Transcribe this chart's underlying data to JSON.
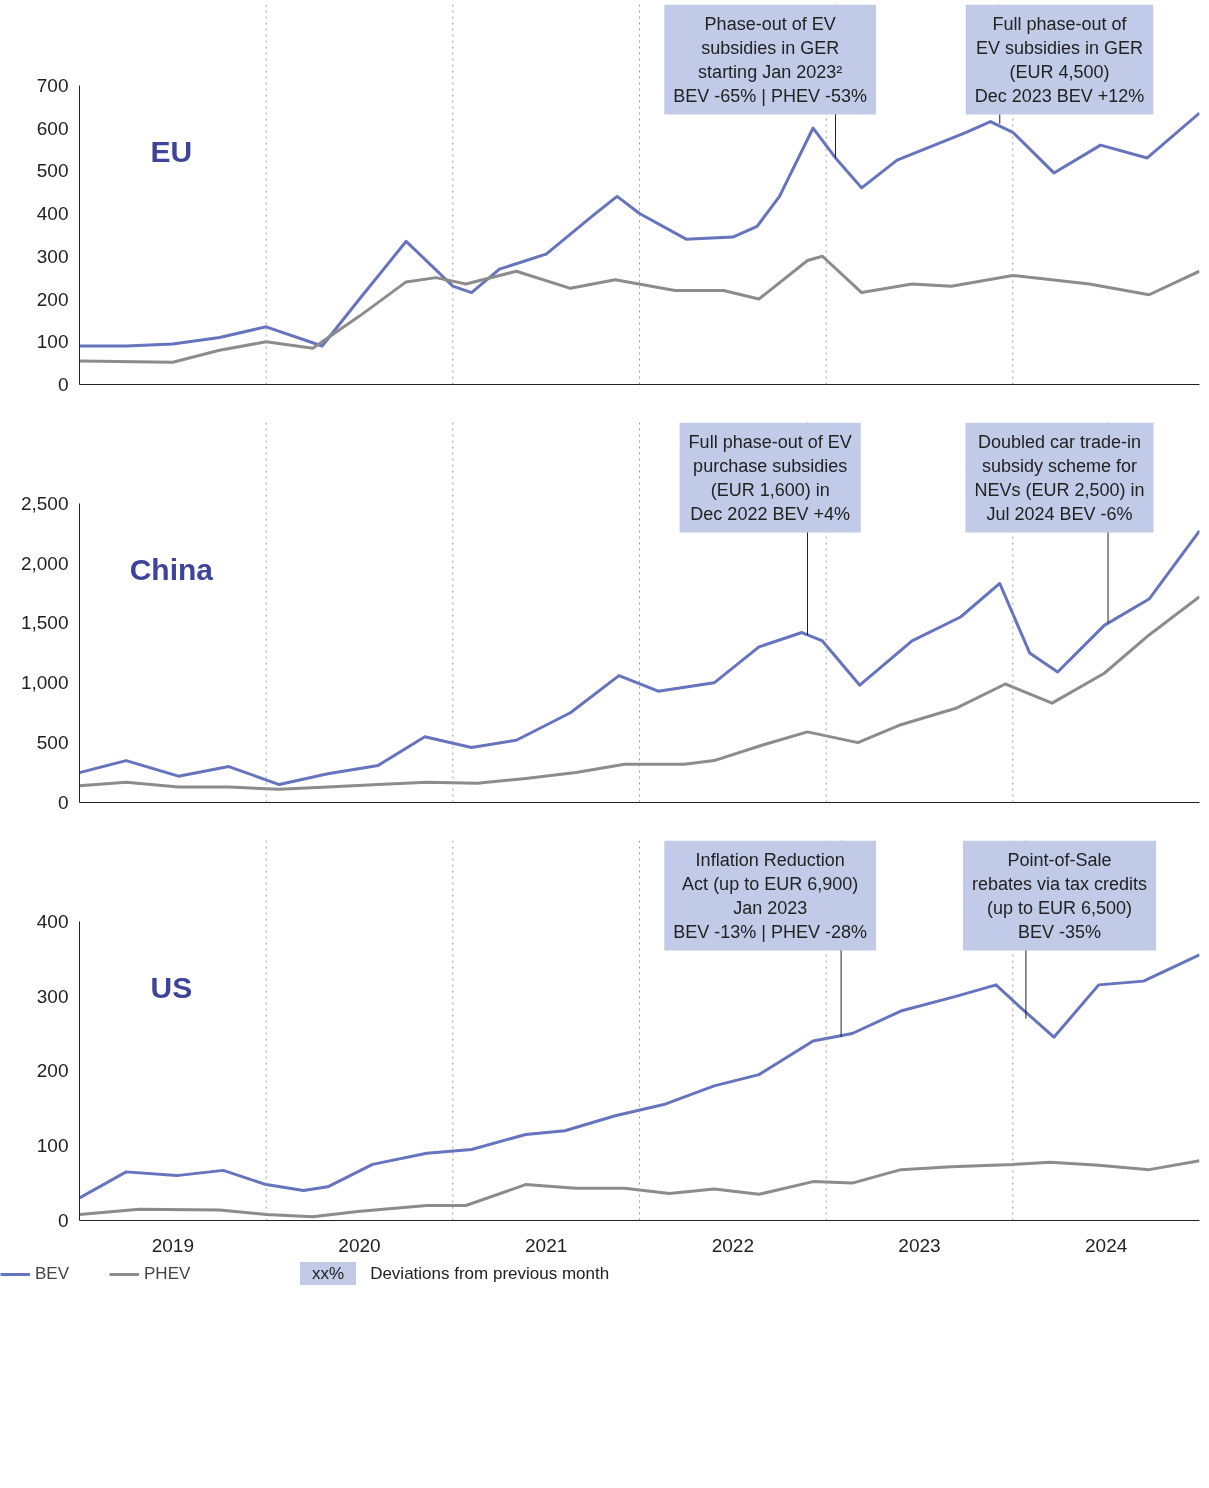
{
  "chart_data": [
    {
      "type": "line",
      "title": "EU",
      "xlim": [
        2019,
        2025
      ],
      "ylim": [
        0,
        700
      ],
      "yticks": [
        0,
        100,
        200,
        300,
        400,
        500,
        600,
        700
      ],
      "tick_labels": "y",
      "grid": false,
      "marker": "none",
      "line_style": "solid",
      "series": [
        {
          "color": "#6673bd",
          "x": [
            2019.0,
            2019.25,
            2019.5,
            2019.75,
            2020.0,
            2020.3,
            2020.5,
            2020.75,
            2021.0,
            2021.1,
            2021.25,
            2021.5,
            2021.75,
            2021.88,
            2022.0,
            2022.25,
            2022.5,
            2022.63,
            2022.75,
            2022.93,
            2023.05,
            2023.19,
            2023.38,
            2023.75,
            2023.88,
            2024.0,
            2024.22,
            2024.47,
            2024.72,
            2025.0
          ],
          "values": [
            90,
            90,
            95,
            110,
            135,
            90,
            200,
            335,
            230,
            215,
            270,
            305,
            395,
            440,
            400,
            340,
            345,
            370,
            440,
            600,
            530,
            460,
            525,
            590,
            615,
            590,
            495,
            560,
            530,
            635
          ]
        },
        {
          "color": "#8c8c8c",
          "x": [
            2019.0,
            2019.5,
            2019.75,
            2020.0,
            2020.25,
            2020.5,
            2020.75,
            2020.91,
            2021.07,
            2021.34,
            2021.63,
            2021.87,
            2022.19,
            2022.45,
            2022.64,
            2022.9,
            2022.98,
            2023.19,
            2023.46,
            2023.67,
            2024.0,
            2024.41,
            2024.73,
            2025.0
          ],
          "values": [
            55,
            52,
            80,
            100,
            85,
            160,
            240,
            250,
            235,
            265,
            225,
            245,
            220,
            220,
            200,
            290,
            300,
            215,
            235,
            230,
            255,
            235,
            210,
            265
          ]
        }
      ],
      "ref_lines": [
        {
          "axis": "x",
          "value": 2020,
          "line_style": "dotted",
          "color": "#999999"
        },
        {
          "axis": "x",
          "value": 2021,
          "line_style": "dotted",
          "color": "#999999"
        },
        {
          "axis": "x",
          "value": 2022,
          "line_style": "dotted",
          "color": "#999999"
        },
        {
          "axis": "x",
          "value": 2023,
          "line_style": "dotted",
          "color": "#999999"
        },
        {
          "axis": "x",
          "value": 2024,
          "line_style": "dotted",
          "color": "#999999"
        }
      ],
      "annotations": [
        {
          "text": "Phase-out of EV\nsubsidies in GER\nstarting Jan 2023²\nBEV -65% | PHEV -53%",
          "x": 2023.05,
          "y": 530
        },
        {
          "text": "Full phase-out of\nEV subsidies in GER\n(EUR 4,500)\nDec 2023 BEV +12%",
          "x": 2023.93,
          "y": 610
        }
      ]
    },
    {
      "type": "line",
      "title": "China",
      "xlim": [
        2019,
        2025
      ],
      "ylim": [
        0,
        2500
      ],
      "yticks": [
        0,
        500,
        {
          "value": 1000,
          "label": "1,000"
        },
        {
          "value": 1500,
          "label": "1,500"
        },
        {
          "value": 2000,
          "label": "2,000"
        },
        {
          "value": 2500,
          "label": "2,500"
        }
      ],
      "tick_labels": "y",
      "grid": false,
      "marker": "none",
      "line_style": "solid",
      "series": [
        {
          "color": "#6673bd",
          "x": [
            2019.0,
            2019.25,
            2019.53,
            2019.8,
            2020.07,
            2020.33,
            2020.6,
            2020.85,
            2021.1,
            2021.34,
            2021.63,
            2021.89,
            2022.1,
            2022.4,
            2022.64,
            2022.87,
            2022.98,
            2023.18,
            2023.46,
            2023.72,
            2023.93,
            2024.09,
            2024.24,
            2024.49,
            2024.73,
            2025.0
          ],
          "values": [
            250,
            350,
            220,
            300,
            150,
            240,
            310,
            550,
            460,
            520,
            750,
            1060,
            930,
            1000,
            1300,
            1420,
            1350,
            980,
            1350,
            1550,
            1830,
            1250,
            1090,
            1480,
            1700,
            2270
          ]
        },
        {
          "color": "#8c8c8c",
          "x": [
            2019.0,
            2019.25,
            2019.53,
            2019.8,
            2020.07,
            2020.33,
            2020.6,
            2020.86,
            2021.13,
            2021.39,
            2021.66,
            2021.92,
            2022.24,
            2022.4,
            2022.66,
            2022.9,
            2023.17,
            2023.4,
            2023.7,
            2023.96,
            2024.21,
            2024.49,
            2024.73,
            2025.0
          ],
          "values": [
            140,
            170,
            130,
            130,
            110,
            130,
            150,
            170,
            160,
            200,
            250,
            320,
            320,
            350,
            480,
            590,
            500,
            650,
            790,
            990,
            830,
            1080,
            1400,
            1720
          ]
        }
      ],
      "ref_lines": [
        {
          "axis": "x",
          "value": 2020,
          "line_style": "dotted",
          "color": "#999999"
        },
        {
          "axis": "x",
          "value": 2021,
          "line_style": "dotted",
          "color": "#999999"
        },
        {
          "axis": "x",
          "value": 2022,
          "line_style": "dotted",
          "color": "#999999"
        },
        {
          "axis": "x",
          "value": 2023,
          "line_style": "dotted",
          "color": "#999999"
        },
        {
          "axis": "x",
          "value": 2024,
          "line_style": "dotted",
          "color": "#999999"
        }
      ],
      "annotations": [
        {
          "text": "Full phase-out of EV\npurchase subsidies\n(EUR 1,600) in\nDec 2022 BEV +4%",
          "x": 2022.9,
          "y": 1400
        },
        {
          "text": "Doubled car trade-in\nsubsidy scheme for\nNEVs (EUR 2,500) in\nJul 2024 BEV -6%",
          "x": 2024.51,
          "y": 1500
        }
      ]
    },
    {
      "type": "line",
      "title": "US",
      "xlim": [
        2019,
        2025
      ],
      "ylim": [
        0,
        400
      ],
      "yticks": [
        0,
        100,
        200,
        300,
        400
      ],
      "xticks": [
        {
          "value": 2019.5,
          "label": "2019"
        },
        {
          "value": 2020.5,
          "label": "2020"
        },
        {
          "value": 2021.5,
          "label": "2021"
        },
        {
          "value": 2022.5,
          "label": "2022"
        },
        {
          "value": 2023.5,
          "label": "2023"
        },
        {
          "value": 2024.5,
          "label": "2024"
        }
      ],
      "grid": false,
      "marker": "none",
      "line_style": "solid",
      "legend": "bottom",
      "series": [
        {
          "name": "BEV",
          "color": "#6673bd",
          "x": [
            2019.0,
            2019.25,
            2019.52,
            2019.77,
            2020.0,
            2020.2,
            2020.33,
            2020.57,
            2020.86,
            2021.1,
            2021.39,
            2021.6,
            2021.87,
            2022.13,
            2022.4,
            2022.64,
            2022.93,
            2023.14,
            2023.4,
            2023.7,
            2023.91,
            2024.04,
            2024.22,
            2024.46,
            2024.7,
            2025.0
          ],
          "values": [
            30,
            65,
            60,
            67,
            48,
            40,
            45,
            75,
            90,
            95,
            115,
            120,
            140,
            155,
            180,
            195,
            240,
            250,
            280,
            300,
            315,
            285,
            245,
            315,
            320,
            355
          ]
        },
        {
          "name": "PHEV",
          "color": "#8c8c8c",
          "x": [
            2019.0,
            2019.32,
            2019.75,
            2020.0,
            2020.25,
            2020.49,
            2020.86,
            2021.07,
            2021.39,
            2021.66,
            2021.92,
            2022.16,
            2022.4,
            2022.64,
            2022.93,
            2023.14,
            2023.4,
            2023.67,
            2024.0,
            2024.2,
            2024.46,
            2024.73,
            2025.0
          ],
          "values": [
            8,
            15,
            14,
            8,
            5,
            12,
            20,
            20,
            48,
            43,
            43,
            36,
            42,
            35,
            52,
            50,
            68,
            72,
            75,
            78,
            74,
            68,
            80
          ]
        }
      ],
      "ref_lines": [
        {
          "axis": "x",
          "value": 2020,
          "line_style": "dotted",
          "color": "#999999"
        },
        {
          "axis": "x",
          "value": 2021,
          "line_style": "dotted",
          "color": "#999999"
        },
        {
          "axis": "x",
          "value": 2022,
          "line_style": "dotted",
          "color": "#999999"
        },
        {
          "axis": "x",
          "value": 2023,
          "line_style": "dotted",
          "color": "#999999"
        },
        {
          "axis": "x",
          "value": 2024,
          "line_style": "dotted",
          "color": "#999999"
        }
      ],
      "annotations": [
        {
          "text": "Inflation Reduction\nAct (up to EUR 6,900)\nJan 2023\nBEV -13% | PHEV -28%",
          "x": 2023.08,
          "y": 245
        },
        {
          "text": "Point-of-Sale\nrebates via tax credits\n(up to EUR 6,500)\nBEV -35%",
          "x": 2024.07,
          "y": 270
        },
        "xx%",
        "Deviations from previous month"
      ]
    }
  ]
}
